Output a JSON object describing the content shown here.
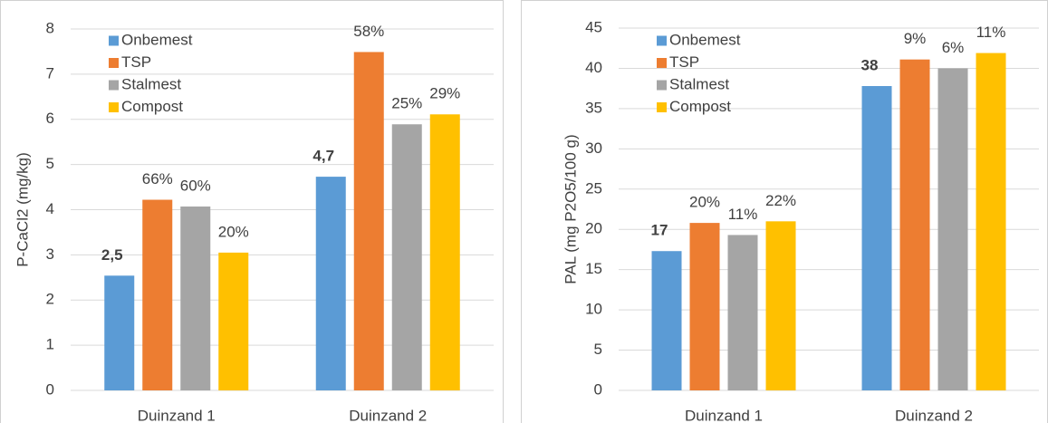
{
  "chart_data": [
    {
      "type": "bar",
      "y_label": "P-CaCl2 (mg/kg)",
      "categories": [
        "Duinzand 1",
        "Duinzand 2"
      ],
      "ylim": [
        0,
        8
      ],
      "yticks": [
        0,
        1,
        2,
        3,
        4,
        5,
        6,
        7,
        8
      ],
      "grid": true,
      "legend": "top-left",
      "series": [
        {
          "name": "Onbemest",
          "color": "#5b9bd5",
          "values": [
            2.54,
            4.73
          ],
          "value_labels": [
            "2,5",
            "4,7"
          ]
        },
        {
          "name": "TSP",
          "color": "#ed7d31",
          "values": [
            4.22,
            7.49
          ],
          "change_labels": [
            "66%",
            "58%"
          ]
        },
        {
          "name": "Stalmest",
          "color": "#a5a5a5",
          "values": [
            4.07,
            5.89
          ],
          "change_labels": [
            "60%",
            "25%"
          ]
        },
        {
          "name": "Compost",
          "color": "#ffc000",
          "values": [
            3.05,
            6.11
          ],
          "change_labels": [
            "20%",
            "29%"
          ]
        }
      ]
    },
    {
      "type": "bar",
      "y_label": "PAL (mg P2O5/100 g)",
      "categories": [
        "Duinzand 1",
        "Duinzand 2"
      ],
      "ylim": [
        0,
        45
      ],
      "yticks": [
        0,
        5,
        10,
        15,
        20,
        25,
        30,
        35,
        40,
        45
      ],
      "grid": true,
      "legend": "top-left",
      "series": [
        {
          "name": "Onbemest",
          "color": "#5b9bd5",
          "values": [
            17.3,
            37.8
          ],
          "value_labels": [
            "17",
            "38"
          ]
        },
        {
          "name": "TSP",
          "color": "#ed7d31",
          "values": [
            20.8,
            41.1
          ],
          "change_labels": [
            "20%",
            "9%"
          ]
        },
        {
          "name": "Stalmest",
          "color": "#a5a5a5",
          "values": [
            19.3,
            40.0
          ],
          "change_labels": [
            "11%",
            "6%"
          ]
        },
        {
          "name": "Compost",
          "color": "#ffc000",
          "values": [
            21.0,
            41.9
          ],
          "change_labels": [
            "22%",
            "11%"
          ]
        }
      ]
    }
  ]
}
